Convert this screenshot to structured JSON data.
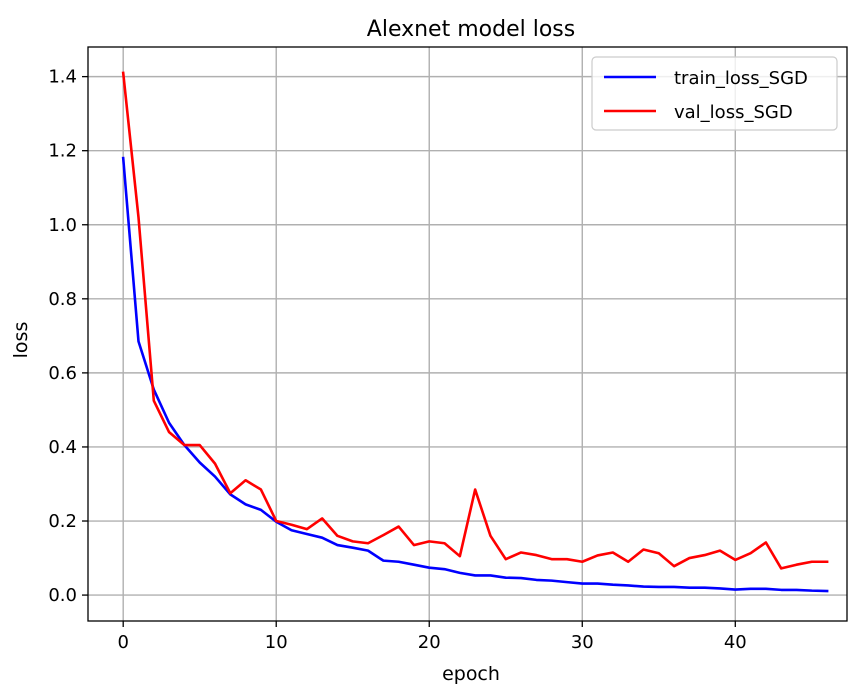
{
  "chart_data": {
    "type": "line",
    "title": "Alexnet model loss",
    "xlabel": "epoch",
    "ylabel": "loss",
    "xlim": [
      -2.3,
      47.3
    ],
    "ylim": [
      -0.07,
      1.48
    ],
    "xticks": [
      0,
      10,
      20,
      30,
      40
    ],
    "yticks": [
      0.0,
      0.2,
      0.4,
      0.6,
      0.8,
      1.0,
      1.2,
      1.4
    ],
    "ytick_labels": [
      "0.0",
      "0.2",
      "0.4",
      "0.6",
      "0.8",
      "1.0",
      "1.2",
      "1.4"
    ],
    "grid": true,
    "legend_position": "top-right",
    "x": [
      0,
      1,
      2,
      3,
      4,
      5,
      6,
      7,
      8,
      9,
      10,
      11,
      12,
      13,
      14,
      15,
      16,
      17,
      18,
      19,
      20,
      21,
      22,
      23,
      24,
      25,
      26,
      27,
      28,
      29,
      30,
      31,
      32,
      33,
      34,
      35,
      36,
      37,
      38,
      39,
      40,
      41,
      42,
      43,
      44,
      45,
      46
    ],
    "series": [
      {
        "name": "train_loss_SGD",
        "color": "#0000ff",
        "values": [
          1.18,
          0.685,
          0.555,
          0.465,
          0.405,
          0.358,
          0.32,
          0.272,
          0.245,
          0.23,
          0.198,
          0.175,
          0.165,
          0.155,
          0.135,
          0.128,
          0.12,
          0.093,
          0.09,
          0.082,
          0.074,
          0.07,
          0.06,
          0.053,
          0.053,
          0.047,
          0.046,
          0.041,
          0.039,
          0.035,
          0.031,
          0.031,
          0.028,
          0.026,
          0.023,
          0.022,
          0.022,
          0.02,
          0.02,
          0.018,
          0.015,
          0.017,
          0.017,
          0.014,
          0.014,
          0.012,
          0.011
        ]
      },
      {
        "name": "val_loss_SGD",
        "color": "#ff0000",
        "values": [
          1.41,
          1.02,
          0.525,
          0.44,
          0.405,
          0.405,
          0.355,
          0.275,
          0.31,
          0.285,
          0.2,
          0.19,
          0.178,
          0.207,
          0.16,
          0.145,
          0.14,
          0.162,
          0.185,
          0.135,
          0.145,
          0.14,
          0.105,
          0.285,
          0.16,
          0.097,
          0.115,
          0.108,
          0.097,
          0.097,
          0.09,
          0.107,
          0.115,
          0.09,
          0.123,
          0.113,
          0.078,
          0.1,
          0.108,
          0.12,
          0.095,
          0.113,
          0.142,
          0.072,
          0.082,
          0.09,
          0.09
        ]
      }
    ]
  }
}
